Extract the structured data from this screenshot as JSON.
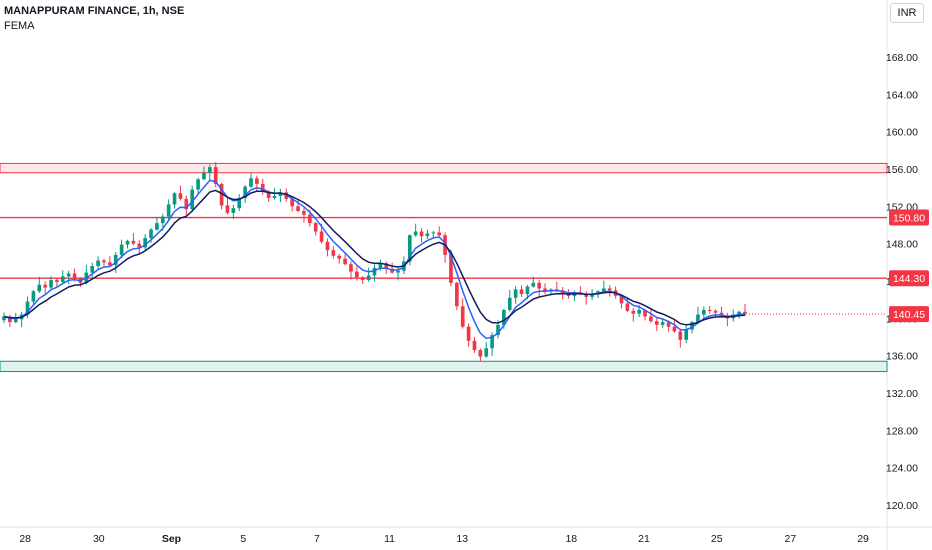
{
  "header": {
    "symbol_title": "MANAPPURAM FINANCE, 1h, NSE",
    "indicator": "FEMA",
    "currency": "INR"
  },
  "chart_data": {
    "type": "candlestick",
    "ylim": [
      118,
      172
    ],
    "yticks": [
      "168.00",
      "164.00",
      "160.00",
      "156.00",
      "152.00",
      "148.00",
      "144.00",
      "140.00",
      "136.00",
      "132.00",
      "128.00",
      "124.00",
      "120.00"
    ],
    "ytick_values": [
      168,
      164,
      160,
      156,
      152,
      148,
      144,
      140,
      136,
      132,
      128,
      124,
      120
    ],
    "xticks": [
      {
        "label": "28",
        "pos": 0.027
      },
      {
        "label": "30",
        "pos": 0.106
      },
      {
        "label": "Sep",
        "pos": 0.184
      },
      {
        "label": "5",
        "pos": 0.261
      },
      {
        "label": "7",
        "pos": 0.34
      },
      {
        "label": "11",
        "pos": 0.418
      },
      {
        "label": "13",
        "pos": 0.496
      },
      {
        "label": "18",
        "pos": 0.613
      },
      {
        "label": "21",
        "pos": 0.691
      },
      {
        "label": "25",
        "pos": 0.769
      },
      {
        "label": "27",
        "pos": 0.848
      },
      {
        "label": "29",
        "pos": 0.926
      }
    ],
    "zones": [
      {
        "from": 155.6,
        "to": 156.6,
        "color": "#f23645"
      },
      {
        "from": 134.3,
        "to": 135.4,
        "color": "#089981"
      }
    ],
    "levels": [
      {
        "value": 150.8,
        "label": "150.80",
        "color": "#f23645"
      },
      {
        "value": 144.3,
        "label": "144.30",
        "color": "#f23645"
      }
    ],
    "last_price": {
      "value": 140.45,
      "label": "140.45",
      "color": "#f23645"
    },
    "colors": {
      "up": "#089981",
      "down": "#f23645",
      "ema_fast": "#2962ff",
      "ema_slow": "#131c5a"
    },
    "closes": [
      140.2,
      139.6,
      139.9,
      140.4,
      141.8,
      142.9,
      143.6,
      143.3,
      144.1,
      143.9,
      144.5,
      144.8,
      144.3,
      143.8,
      144.9,
      145.6,
      146.2,
      146.0,
      145.7,
      146.8,
      147.9,
      148.3,
      148.0,
      147.6,
      148.6,
      149.5,
      150.2,
      150.9,
      152.2,
      153.4,
      152.8,
      151.7,
      153.8,
      154.9,
      155.6,
      156.2,
      154.4,
      152.1,
      151.3,
      151.8,
      152.9,
      154.1,
      155.0,
      154.4,
      153.6,
      152.9,
      153.1,
      153.5,
      152.8,
      152.0,
      151.5,
      151.1,
      150.2,
      149.3,
      148.2,
      147.3,
      146.7,
      146.4,
      145.8,
      145.0,
      144.4,
      144.1,
      144.6,
      145.4,
      145.9,
      145.3,
      144.9,
      145.1,
      146.1,
      148.9,
      149.3,
      148.8,
      149.1,
      149.2,
      148.9,
      146.8,
      143.8,
      141.3,
      139.1,
      137.6,
      136.6,
      135.9,
      136.8,
      138.2,
      139.3,
      140.9,
      142.2,
      143.1,
      142.6,
      143.4,
      143.8,
      143.2,
      142.9,
      143.1,
      143.0,
      142.7,
      142.4,
      142.8,
      142.6,
      142.3,
      142.6,
      142.9,
      143.2,
      143.0,
      142.4,
      141.6,
      140.8,
      140.5,
      140.9,
      140.2,
      139.7,
      139.3,
      139.6,
      139.1,
      138.6,
      137.7,
      138.8,
      139.6,
      140.4,
      140.9,
      140.8,
      140.6,
      140.3,
      140.0,
      140.4,
      140.7,
      140.45
    ]
  }
}
